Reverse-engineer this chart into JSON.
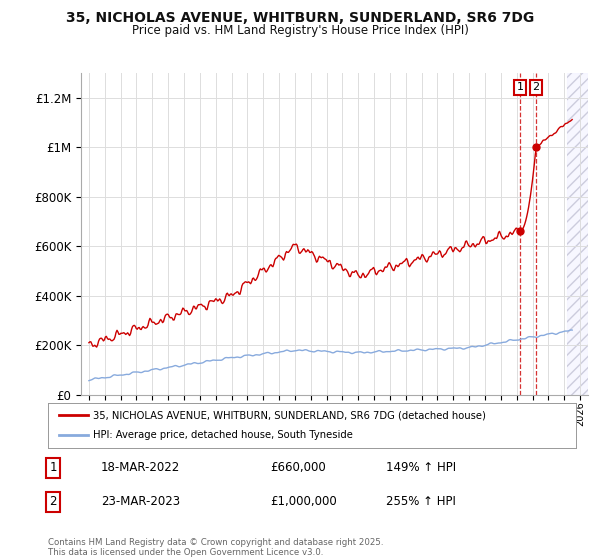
{
  "title": "35, NICHOLAS AVENUE, WHITBURN, SUNDERLAND, SR6 7DG",
  "subtitle": "Price paid vs. HM Land Registry's House Price Index (HPI)",
  "legend_line1": "35, NICHOLAS AVENUE, WHITBURN, SUNDERLAND, SR6 7DG (detached house)",
  "legend_line2": "HPI: Average price, detached house, South Tyneside",
  "annotation1_date": "18-MAR-2022",
  "annotation1_price": "£660,000",
  "annotation1_hpi": "149% ↑ HPI",
  "annotation2_date": "23-MAR-2023",
  "annotation2_price": "£1,000,000",
  "annotation2_hpi": "255% ↑ HPI",
  "footer": "Contains HM Land Registry data © Crown copyright and database right 2025.\nThis data is licensed under the Open Government Licence v3.0.",
  "sale1_year": 2022.21,
  "sale1_price": 660000,
  "sale2_year": 2023.22,
  "sale2_price": 1000000,
  "red_color": "#cc0000",
  "blue_color": "#88aadd",
  "bg_color": "#ffffff",
  "grid_color": "#dddddd",
  "ylim_max": 1300000,
  "xlim_min": 1994.5,
  "xlim_max": 2026.5
}
